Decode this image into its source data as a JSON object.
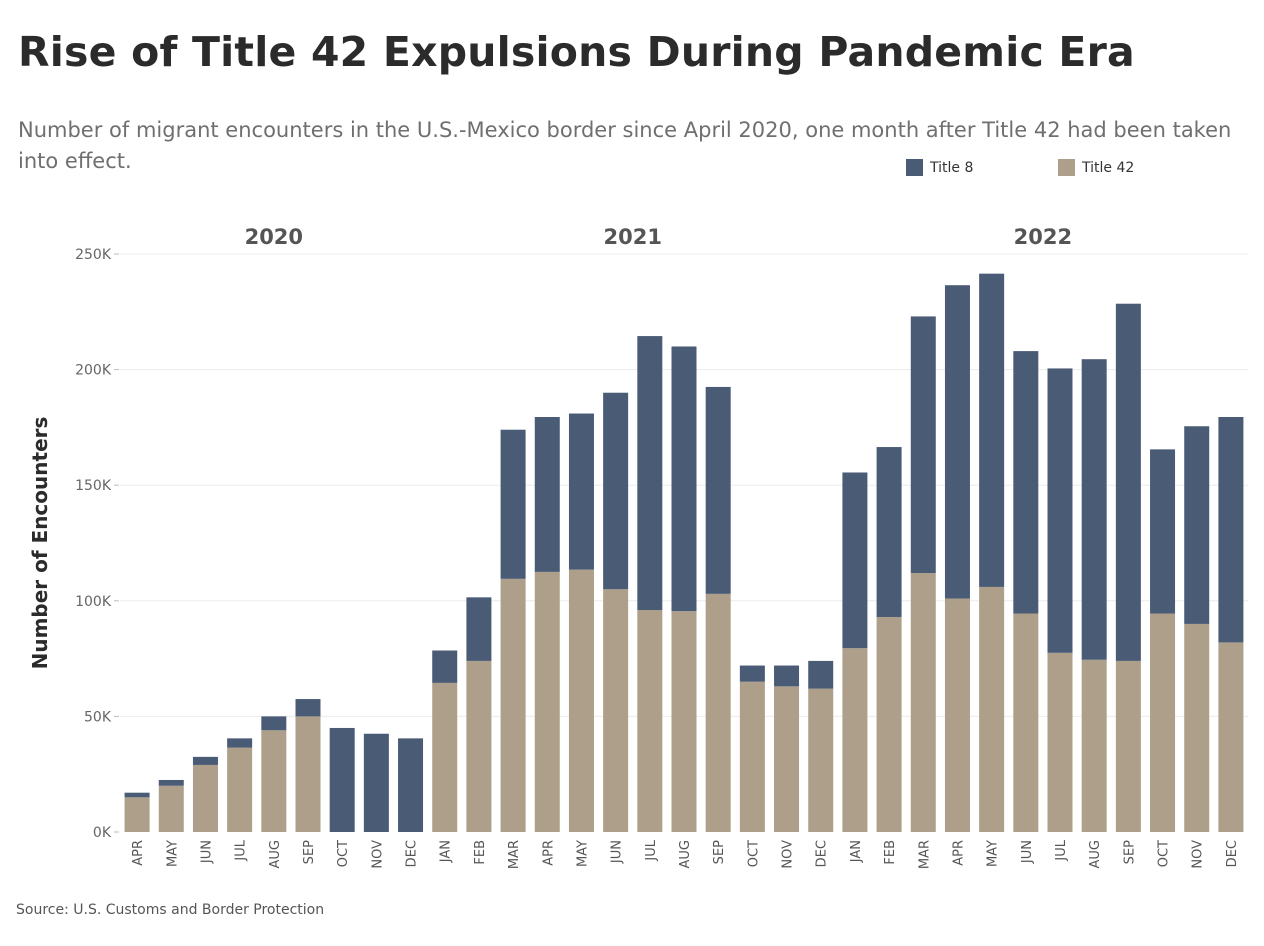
{
  "title": "Rise of Title 42 Expulsions During Pandemic Era",
  "subtitle": "Number of migrant encounters in the U.S.-Mexico border since April 2020, one month after Title 42 had been taken into effect.",
  "source": "Source: U.S. Customs and Border Protection",
  "legend": [
    {
      "label": "Title 8",
      "color": "#4a5b76"
    },
    {
      "label": "Title 42",
      "color": "#ad9f89"
    }
  ],
  "chart_data": {
    "type": "bar",
    "stacked": true,
    "ylabel": "Number of Encounters",
    "ylim": [
      0,
      250000
    ],
    "yticks": [
      {
        "value": 0,
        "label": "0K"
      },
      {
        "value": 50000,
        "label": "50K"
      },
      {
        "value": 100000,
        "label": "100K"
      },
      {
        "value": 150000,
        "label": "150K"
      },
      {
        "value": 200000,
        "label": "200K"
      },
      {
        "value": 250000,
        "label": "250K"
      }
    ],
    "grid": true,
    "legend_position": "top-right",
    "year_groups": [
      {
        "label": "2020",
        "months": 9
      },
      {
        "label": "2021",
        "months": 12
      },
      {
        "label": "2022",
        "months": 12
      }
    ],
    "categories": [
      "APR",
      "MAY",
      "JUN",
      "JUL",
      "AUG",
      "SEP",
      "OCT",
      "NOV",
      "DEC",
      "JAN",
      "FEB",
      "MAR",
      "APR",
      "MAY",
      "JUN",
      "JUL",
      "AUG",
      "SEP",
      "OCT",
      "NOV",
      "DEC",
      "JAN",
      "FEB",
      "MAR",
      "APR",
      "MAY",
      "JUN",
      "JUL",
      "AUG",
      "SEP",
      "OCT",
      "NOV",
      "DEC"
    ],
    "series": [
      {
        "name": "Title 42",
        "color": "#ad9f89",
        "values": [
          15000,
          20000,
          29000,
          36500,
          44000,
          50000,
          0,
          0,
          0,
          64500,
          74000,
          109500,
          112500,
          113500,
          105000,
          96000,
          95500,
          103000,
          65000,
          63000,
          62000,
          79500,
          93000,
          112000,
          101000,
          106000,
          94500,
          77500,
          74500,
          74000,
          94500,
          90000,
          82000
        ]
      },
      {
        "name": "Title 8",
        "color": "#4a5b76",
        "values": [
          2000,
          2500,
          3500,
          4000,
          6000,
          7500,
          45000,
          42500,
          40500,
          14000,
          27500,
          64500,
          67000,
          67500,
          85000,
          118500,
          114500,
          89500,
          7000,
          9000,
          12000,
          76000,
          73500,
          111000,
          135500,
          135500,
          113500,
          123000,
          130000,
          154500,
          71000,
          85500,
          97500
        ]
      }
    ]
  }
}
